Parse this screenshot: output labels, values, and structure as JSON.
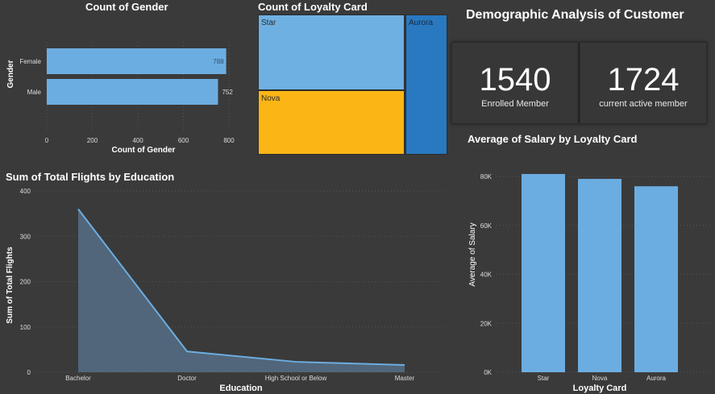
{
  "dashboard": {
    "title": "Demographic Analysis of Customer",
    "kpis": [
      {
        "value": "1540",
        "label": "Enrolled Member"
      },
      {
        "value": "1724",
        "label": "current active member"
      }
    ]
  },
  "colors": {
    "background": "#3a3a3a",
    "bar": "#6cade1",
    "tree_star": "#6fb0e2",
    "tree_nova": "#fbb616",
    "tree_aurora": "#2979c1",
    "area_line": "#6cade1",
    "area_fill": "#546b82"
  },
  "chart_data": [
    {
      "id": "gender",
      "type": "bar",
      "orientation": "horizontal",
      "title": "Count of Gender",
      "xlabel": "Count of Gender",
      "ylabel": "Gender",
      "categories": [
        "Female",
        "Male"
      ],
      "values": [
        788,
        752
      ],
      "value_labels": [
        "788",
        "752"
      ],
      "xlim": [
        0,
        800
      ],
      "xticks": [
        "0",
        "200",
        "400",
        "600",
        "800"
      ]
    },
    {
      "id": "loyalty",
      "type": "treemap",
      "title": "Count of Loyalty Card",
      "categories": [
        "Star",
        "Nova",
        "Aurora"
      ]
    },
    {
      "id": "flights",
      "type": "area",
      "title": "Sum of Total Flights by Education",
      "xlabel": "Education",
      "ylabel": "Sum of Total Flights",
      "categories": [
        "Bachelor",
        "Doctor",
        "High School or Below",
        "Master"
      ],
      "values": [
        360,
        46,
        23,
        16
      ],
      "ylim": [
        0,
        400
      ],
      "yticks": [
        "0",
        "100",
        "200",
        "300",
        "400"
      ]
    },
    {
      "id": "salary",
      "type": "bar",
      "title": "Average of Salary by Loyalty Card",
      "xlabel": "Loyalty Card",
      "ylabel": "Average of Salary",
      "categories": [
        "Star",
        "Nova",
        "Aurora"
      ],
      "values": [
        81000,
        79000,
        76000
      ],
      "ylim": [
        0,
        80000
      ],
      "yticks": [
        "0K",
        "20K",
        "40K",
        "60K",
        "80K"
      ]
    }
  ]
}
